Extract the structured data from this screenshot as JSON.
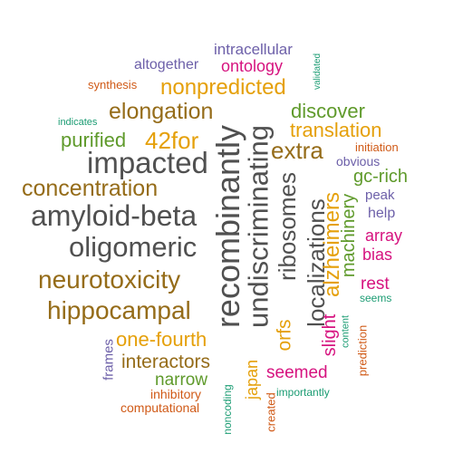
{
  "word_cloud": {
    "colors": {
      "gray": "#505050",
      "brown": "#956C19",
      "orange": "#E5A00A",
      "green": "#5F9A2B",
      "magenta": "#D6137F",
      "purple": "#6D60A9",
      "teal": "#1B9C73",
      "red_orange": "#D05A17"
    },
    "words": [
      {
        "text": "amyloid-beta",
        "color": "gray",
        "orientation": "horizontal"
      },
      {
        "text": "recombinantly",
        "color": "gray",
        "orientation": "vertical"
      },
      {
        "text": "undiscriminating",
        "color": "gray",
        "orientation": "vertical"
      },
      {
        "text": "impacted",
        "color": "gray",
        "orientation": "horizontal"
      },
      {
        "text": "oligomeric",
        "color": "gray",
        "orientation": "horizontal"
      },
      {
        "text": "ribosomes",
        "color": "gray",
        "orientation": "vertical"
      },
      {
        "text": "localizations",
        "color": "gray",
        "orientation": "vertical"
      },
      {
        "text": "neurotoxicity",
        "color": "brown",
        "orientation": "horizontal"
      },
      {
        "text": "hippocampal",
        "color": "brown",
        "orientation": "horizontal"
      },
      {
        "text": "concentration",
        "color": "brown",
        "orientation": "horizontal"
      },
      {
        "text": "elongation",
        "color": "brown",
        "orientation": "horizontal"
      },
      {
        "text": "extra",
        "color": "brown",
        "orientation": "horizontal"
      },
      {
        "text": "interactors",
        "color": "brown",
        "orientation": "horizontal"
      },
      {
        "text": "nonpredicted",
        "color": "orange",
        "orientation": "horizontal"
      },
      {
        "text": "42for",
        "color": "orange",
        "orientation": "horizontal"
      },
      {
        "text": "translation",
        "color": "orange",
        "orientation": "horizontal"
      },
      {
        "text": "alzheimers",
        "color": "orange",
        "orientation": "vertical"
      },
      {
        "text": "one-fourth",
        "color": "orange",
        "orientation": "horizontal"
      },
      {
        "text": "orfs",
        "color": "orange",
        "orientation": "vertical"
      },
      {
        "text": "japan",
        "color": "orange",
        "orientation": "vertical"
      },
      {
        "text": "purified",
        "color": "green",
        "orientation": "horizontal"
      },
      {
        "text": "discover",
        "color": "green",
        "orientation": "horizontal"
      },
      {
        "text": "gc-rich",
        "color": "green",
        "orientation": "horizontal"
      },
      {
        "text": "machinery",
        "color": "green",
        "orientation": "vertical"
      },
      {
        "text": "narrow",
        "color": "green",
        "orientation": "horizontal"
      },
      {
        "text": "ontology",
        "color": "magenta",
        "orientation": "horizontal"
      },
      {
        "text": "array",
        "color": "magenta",
        "orientation": "horizontal"
      },
      {
        "text": "bias",
        "color": "magenta",
        "orientation": "horizontal"
      },
      {
        "text": "rest",
        "color": "magenta",
        "orientation": "horizontal"
      },
      {
        "text": "slight",
        "color": "magenta",
        "orientation": "vertical"
      },
      {
        "text": "seemed",
        "color": "magenta",
        "orientation": "horizontal"
      },
      {
        "text": "intracellular",
        "color": "purple",
        "orientation": "horizontal"
      },
      {
        "text": "altogether",
        "color": "purple",
        "orientation": "horizontal"
      },
      {
        "text": "obvious",
        "color": "purple",
        "orientation": "horizontal"
      },
      {
        "text": "peak",
        "color": "purple",
        "orientation": "horizontal"
      },
      {
        "text": "help",
        "color": "purple",
        "orientation": "horizontal"
      },
      {
        "text": "frames",
        "color": "purple",
        "orientation": "vertical"
      },
      {
        "text": "validated",
        "color": "teal",
        "orientation": "vertical"
      },
      {
        "text": "indicates",
        "color": "teal",
        "orientation": "horizontal"
      },
      {
        "text": "seems",
        "color": "teal",
        "orientation": "horizontal"
      },
      {
        "text": "content",
        "color": "teal",
        "orientation": "vertical"
      },
      {
        "text": "importantly",
        "color": "teal",
        "orientation": "horizontal"
      },
      {
        "text": "noncoding",
        "color": "teal",
        "orientation": "vertical"
      },
      {
        "text": "synthesis",
        "color": "red_orange",
        "orientation": "horizontal"
      },
      {
        "text": "initiation",
        "color": "red_orange",
        "orientation": "horizontal"
      },
      {
        "text": "inhibitory",
        "color": "red_orange",
        "orientation": "horizontal"
      },
      {
        "text": "computational",
        "color": "red_orange",
        "orientation": "horizontal"
      },
      {
        "text": "prediction",
        "color": "red_orange",
        "orientation": "vertical"
      },
      {
        "text": "created",
        "color": "red_orange",
        "orientation": "vertical"
      }
    ]
  }
}
